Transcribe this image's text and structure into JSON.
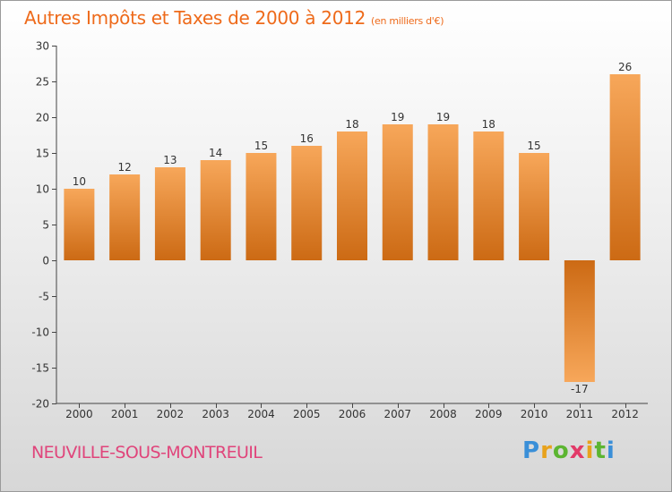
{
  "title": "Autres Impôts et Taxes de 2000 à 2012",
  "unit": "(en milliers d'€)",
  "commune": "NEUVILLE-SOUS-MONTREUIL",
  "brand": {
    "letters": [
      "P",
      "r",
      "o",
      "x",
      "i",
      "t",
      "i"
    ],
    "colors": [
      "#3a8fd8",
      "#e8a21c",
      "#5cb531",
      "#e23a68",
      "#e8a21c",
      "#5cb531",
      "#3a8fd8"
    ]
  },
  "colors": {
    "bar_light": "#f7a75a",
    "bar_dark": "#cc6a14",
    "text": "#333333",
    "title": "#ee6a1a"
  },
  "chart_data": {
    "type": "bar",
    "title": "Autres Impôts et Taxes de 2000 à 2012",
    "categories": [
      "2000",
      "2001",
      "2002",
      "2003",
      "2004",
      "2005",
      "2006",
      "2007",
      "2008",
      "2009",
      "2010",
      "2011",
      "2012"
    ],
    "values": [
      10,
      12,
      13,
      14,
      15,
      16,
      18,
      19,
      19,
      18,
      15,
      -17,
      26
    ],
    "data_labels": [
      "10",
      "12",
      "13",
      "14",
      "15",
      "16",
      "18",
      "19",
      "19",
      "18",
      "15",
      "-17",
      "26"
    ],
    "yticks": [
      "30",
      "25",
      "20",
      "15",
      "10",
      "5",
      "0",
      "-5",
      "-10",
      "-15",
      "-20"
    ],
    "ylim": [
      -20,
      30
    ],
    "grid": false,
    "legend": "none"
  }
}
